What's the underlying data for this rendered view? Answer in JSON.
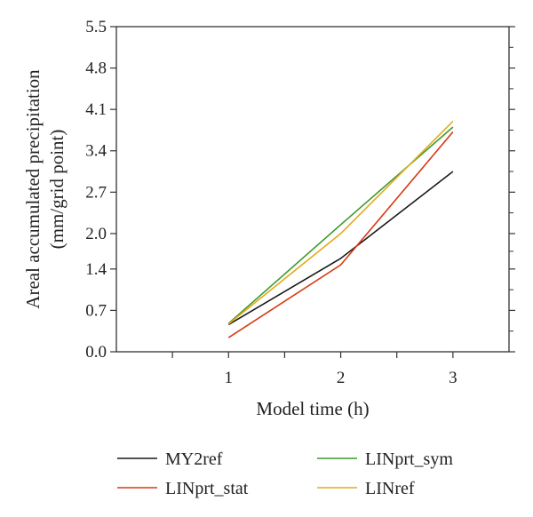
{
  "chart_data": {
    "type": "line",
    "title": "",
    "xlabel": "Model time (h)",
    "ylabel": [
      "Areal accumulated precipitation",
      "(mm/grid point)"
    ],
    "x": [
      1,
      2,
      3
    ],
    "x_ticks": [
      "1",
      "2",
      "3"
    ],
    "y_ticks": [
      "0.0",
      "0.7",
      "1.4",
      "2.0",
      "2.7",
      "3.4",
      "4.1",
      "4.8",
      "5.5"
    ],
    "y_tick_values": [
      0.0,
      0.7,
      1.4,
      2.0,
      2.7,
      3.4,
      4.1,
      4.8,
      5.5
    ],
    "xlim": [
      0.0,
      3.5
    ],
    "ylim": [
      0.0,
      5.5
    ],
    "grid": false,
    "legend_position": "bottom",
    "series": [
      {
        "name": "MY2ref",
        "color": "#1a1a1a",
        "values": [
          0.46,
          1.58,
          3.05
        ]
      },
      {
        "name": "LINprt_sym",
        "color": "#3a9b2a",
        "values": [
          0.48,
          2.15,
          3.8
        ]
      },
      {
        "name": "LINprt_stat",
        "color": "#d63a12",
        "values": [
          0.24,
          1.47,
          3.72
        ]
      },
      {
        "name": "LINref",
        "color": "#e8a81c",
        "values": [
          0.47,
          2.0,
          3.9
        ]
      }
    ]
  }
}
